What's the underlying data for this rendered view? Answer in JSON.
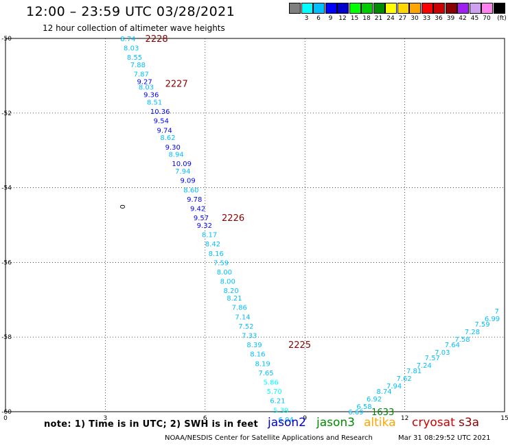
{
  "title": "12:00 – 23:59 UTC 03/28/2021",
  "subtitle": "12 hour collection of altimeter wave heights",
  "color_scale": {
    "colors": [
      "#7f7f7f",
      "#00ffff",
      "#00bfff",
      "#0000ff",
      "#0000cd",
      "#00ff00",
      "#00cd00",
      "#008b00",
      "#ffff00",
      "#ffd700",
      "#ffa500",
      "#ff0000",
      "#cd0000",
      "#8b0000",
      "#a020f0",
      "#d0a0f0",
      "#ff82ee",
      "#000000"
    ],
    "labels": [
      "3",
      "6",
      "9",
      "12",
      "15",
      "18",
      "21",
      "24",
      "27",
      "30",
      "33",
      "36",
      "39",
      "42",
      "45",
      "70"
    ],
    "unit": "(ft)"
  },
  "axes": {
    "x_ticks": [
      "0",
      "3",
      "6",
      "9",
      "12",
      "15"
    ],
    "y_ticks": [
      "-50",
      "-52",
      "-54",
      "-56",
      "-58",
      "-60"
    ],
    "x_range": [
      0,
      15
    ],
    "y_range": [
      -60,
      -50
    ],
    "grid": "dotted"
  },
  "contour_label": "0",
  "track_labels": [
    {
      "label": "2228",
      "lon": 4.2,
      "lat": -50.0,
      "color": "#8b0000"
    },
    {
      "label": "2227",
      "lon": 4.8,
      "lat": -51.2,
      "color": "#8b0000"
    },
    {
      "label": "2226",
      "lon": 6.5,
      "lat": -54.8,
      "color": "#8b0000"
    },
    {
      "label": "2225",
      "lon": 8.5,
      "lat": -58.2,
      "color": "#8b0000"
    },
    {
      "label": "1633",
      "lon": 11.0,
      "lat": -60.0,
      "color": "#007f00"
    }
  ],
  "observations": [
    {
      "v": "8.74",
      "lon": 3.45,
      "lat": -50.0
    },
    {
      "v": "8.03",
      "lon": 3.55,
      "lat": -50.25
    },
    {
      "v": "8.55",
      "lon": 3.65,
      "lat": -50.5
    },
    {
      "v": "7.88",
      "lon": 3.75,
      "lat": -50.7
    },
    {
      "v": "7.87",
      "lon": 3.85,
      "lat": -50.95
    },
    {
      "v": "9.27",
      "lon": 3.95,
      "lat": -51.15
    },
    {
      "v": "8.03",
      "lon": 4.0,
      "lat": -51.3
    },
    {
      "v": "9.36",
      "lon": 4.15,
      "lat": -51.5
    },
    {
      "v": "8.51",
      "lon": 4.25,
      "lat": -51.7
    },
    {
      "v": "10.36",
      "lon": 4.35,
      "lat": -51.95
    },
    {
      "v": "9.54",
      "lon": 4.45,
      "lat": -52.2
    },
    {
      "v": "9.74",
      "lon": 4.55,
      "lat": -52.45
    },
    {
      "v": "8.62",
      "lon": 4.65,
      "lat": -52.65
    },
    {
      "v": "9.30",
      "lon": 4.8,
      "lat": -52.9
    },
    {
      "v": "8.94",
      "lon": 4.9,
      "lat": -53.1
    },
    {
      "v": "10.09",
      "lon": 5.0,
      "lat": -53.35
    },
    {
      "v": "7.94",
      "lon": 5.1,
      "lat": -53.55
    },
    {
      "v": "9.09",
      "lon": 5.25,
      "lat": -53.8
    },
    {
      "v": "8.60",
      "lon": 5.35,
      "lat": -54.05
    },
    {
      "v": "9.78",
      "lon": 5.45,
      "lat": -54.3
    },
    {
      "v": "9.42",
      "lon": 5.55,
      "lat": -54.55
    },
    {
      "v": "9.57",
      "lon": 5.65,
      "lat": -54.8
    },
    {
      "v": "9.32",
      "lon": 5.75,
      "lat": -55.0
    },
    {
      "v": "8.17",
      "lon": 5.9,
      "lat": -55.25
    },
    {
      "v": "8.42",
      "lon": 6.0,
      "lat": -55.5
    },
    {
      "v": "8.16",
      "lon": 6.1,
      "lat": -55.75
    },
    {
      "v": "7.59",
      "lon": 6.25,
      "lat": -56.0
    },
    {
      "v": "8.00",
      "lon": 6.35,
      "lat": -56.25
    },
    {
      "v": "8.00",
      "lon": 6.45,
      "lat": -56.5
    },
    {
      "v": "8.20",
      "lon": 6.55,
      "lat": -56.75
    },
    {
      "v": "8.21",
      "lon": 6.65,
      "lat": -56.95
    },
    {
      "v": "7.86",
      "lon": 6.8,
      "lat": -57.2
    },
    {
      "v": "7.14",
      "lon": 6.9,
      "lat": -57.45
    },
    {
      "v": "7.52",
      "lon": 7.0,
      "lat": -57.7
    },
    {
      "v": "7.33",
      "lon": 7.1,
      "lat": -57.95
    },
    {
      "v": "8.39",
      "lon": 7.25,
      "lat": -58.2
    },
    {
      "v": "8.16",
      "lon": 7.35,
      "lat": -58.45
    },
    {
      "v": "8.19",
      "lon": 7.5,
      "lat": -58.7
    },
    {
      "v": "7.65",
      "lon": 7.6,
      "lat": -58.95
    },
    {
      "v": "5.86",
      "lon": 7.75,
      "lat": -59.2
    },
    {
      "v": "5.70",
      "lon": 7.85,
      "lat": -59.45
    },
    {
      "v": "6.21",
      "lon": 7.95,
      "lat": -59.7
    },
    {
      "v": "5.39",
      "lon": 8.05,
      "lat": -59.95
    },
    {
      "v": "6.04",
      "lon": 8.2,
      "lat": -60.2
    },
    {
      "v": "6.69",
      "lon": 10.3,
      "lat": -60.0
    },
    {
      "v": "6.58",
      "lon": 10.55,
      "lat": -59.85
    },
    {
      "v": "6.92",
      "lon": 10.85,
      "lat": -59.65
    },
    {
      "v": "8.74",
      "lon": 11.15,
      "lat": -59.45
    },
    {
      "v": "7.94",
      "lon": 11.45,
      "lat": -59.3
    },
    {
      "v": "7.62",
      "lon": 11.75,
      "lat": -59.1
    },
    {
      "v": "7.81",
      "lon": 12.05,
      "lat": -58.9
    },
    {
      "v": "7.24",
      "lon": 12.35,
      "lat": -58.75
    },
    {
      "v": "7.57",
      "lon": 12.6,
      "lat": -58.55
    },
    {
      "v": "7.03",
      "lon": 12.9,
      "lat": -58.4
    },
    {
      "v": "7.64",
      "lon": 13.2,
      "lat": -58.2
    },
    {
      "v": "7.58",
      "lon": 13.5,
      "lat": -58.05
    },
    {
      "v": "7.28",
      "lon": 13.8,
      "lat": -57.85
    },
    {
      "v": "7.59",
      "lon": 14.1,
      "lat": -57.65
    },
    {
      "v": "6.99",
      "lon": 14.4,
      "lat": -57.5
    },
    {
      "v": "7",
      "lon": 14.7,
      "lat": -57.3
    }
  ],
  "note": "note:  1) Time is in UTC;  2) SWH is in feet",
  "satellites": [
    {
      "name": "jason2",
      "color": "#0000cd"
    },
    {
      "name": "jason3",
      "color": "#008b00"
    },
    {
      "name": "altika",
      "color": "#ffa500"
    },
    {
      "name": "cryosat",
      "color": "#cd0000"
    },
    {
      "name": "s3a",
      "color": "#8b0000"
    }
  ],
  "credit": "NOAA/NESDIS Center for Satellite Applications and Research",
  "timestamp": "Mar 31 08:29:52 UTC 2021"
}
